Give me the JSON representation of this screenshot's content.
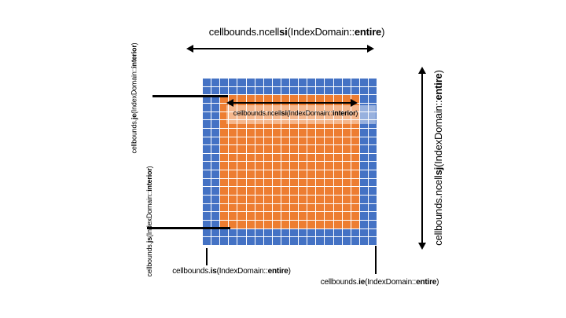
{
  "figure": {
    "background": "#ffffff",
    "description": "cellbounds index domain grid diagram"
  },
  "grid": {
    "rows": 20,
    "cols": 20,
    "border_cells": 2,
    "boundary_color": "#4472C4",
    "interior_color": "#ED7D31",
    "gridline_color": "#ffffff"
  },
  "labels": {
    "ncellsi_entire": {
      "text": "cellbounds.ncellsi(IndexDomain::entire)",
      "segments": [
        {
          "text": "cellbounds.ncell",
          "bold": false
        },
        {
          "text": "si",
          "bold": true
        },
        {
          "text": "(IndexDomain::",
          "bold": false
        },
        {
          "text": "entire",
          "bold": true
        },
        {
          "text": ")",
          "bold": false
        }
      ]
    },
    "ncellsi_interior": {
      "text": "cellbounds.ncellsi(IndexDomain::interior)",
      "segments": [
        {
          "text": "cellbounds.ncell",
          "bold": false
        },
        {
          "text": "si",
          "bold": true
        },
        {
          "text": "(IndexDomain::",
          "bold": false
        },
        {
          "text": "interior",
          "bold": true
        },
        {
          "text": ")",
          "bold": false
        }
      ]
    },
    "ncellsj_entire": {
      "text": "cellbounds.ncellsj(IndexDomain::entire)",
      "segments": [
        {
          "text": "cellbounds.ncell",
          "bold": false
        },
        {
          "text": "sj",
          "bold": true
        },
        {
          "text": "(IndexDomain::",
          "bold": false
        },
        {
          "text": "entire",
          "bold": true
        },
        {
          "text": ")",
          "bold": false
        }
      ]
    },
    "je_interior": {
      "text": "cellbounds.je(IndexDomain::interior)",
      "segments": [
        {
          "text": "cellbounds.",
          "bold": false
        },
        {
          "text": "je",
          "bold": true
        },
        {
          "text": "(IndexDomain::",
          "bold": false
        },
        {
          "text": "interior",
          "bold": true
        },
        {
          "text": ")",
          "bold": false
        }
      ]
    },
    "js_interior": {
      "text": "cellbounds.js(IndexDomain::interior)",
      "segments": [
        {
          "text": "cellbounds.",
          "bold": false
        },
        {
          "text": "js",
          "bold": true
        },
        {
          "text": "(IndexDomain::",
          "bold": false
        },
        {
          "text": "interior",
          "bold": true
        },
        {
          "text": ")",
          "bold": false
        }
      ]
    },
    "is_entire": {
      "text": "cellbounds.is(IndexDomain::entire)",
      "segments": [
        {
          "text": "cellbounds.",
          "bold": false
        },
        {
          "text": "is",
          "bold": true
        },
        {
          "text": "(IndexDomain::",
          "bold": false
        },
        {
          "text": "entire",
          "bold": true
        },
        {
          "text": ")",
          "bold": false
        }
      ]
    },
    "ie_entire": {
      "text": "cellbounds.ie(IndexDomain::entire)",
      "segments": [
        {
          "text": "cellbounds.",
          "bold": false
        },
        {
          "text": "ie",
          "bold": true
        },
        {
          "text": "(IndexDomain::",
          "bold": false
        },
        {
          "text": "entire",
          "bold": true
        },
        {
          "text": ")",
          "bold": false
        }
      ]
    }
  }
}
